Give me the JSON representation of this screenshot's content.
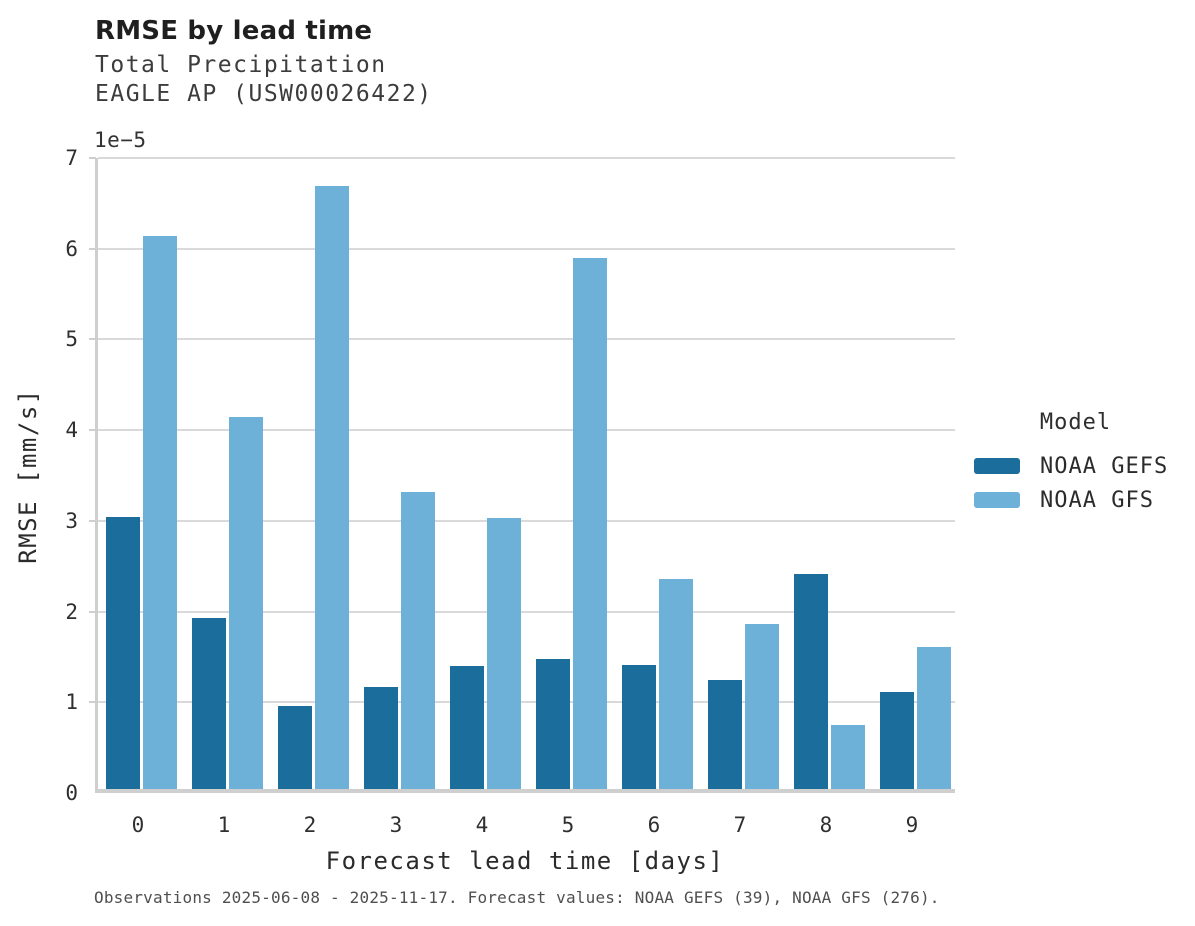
{
  "title": "RMSE by lead time",
  "subtitle1": "Total Precipitation",
  "subtitle2": "EAGLE AP (USW00026422)",
  "footer": "Observations 2025-06-08 - 2025-11-17. Forecast values: NOAA GEFS (39), NOAA GFS (276).",
  "legend": {
    "title": "Model",
    "items": [
      {
        "label": "NOAA GEFS",
        "color": "#1b6d9b"
      },
      {
        "label": "NOAA GFS",
        "color": "#6db1d8"
      }
    ]
  },
  "chart_data": {
    "type": "bar",
    "title": "RMSE by lead time",
    "subtitle": [
      "Total Precipitation",
      "EAGLE AP (USW00026422)"
    ],
    "xlabel": "Forecast lead time [days]",
    "ylabel": "RMSE [mm/s]",
    "offset_label": "1e−5",
    "value_scale": "1e-5",
    "categories": [
      0,
      1,
      2,
      3,
      4,
      5,
      6,
      7,
      8,
      9
    ],
    "series": [
      {
        "name": "NOAA GEFS",
        "color": "#1b6d9b",
        "values": [
          3.02,
          1.9,
          0.92,
          1.13,
          1.37,
          1.44,
          1.38,
          1.21,
          2.38,
          1.08
        ]
      },
      {
        "name": "NOAA GFS",
        "color": "#6db1d8",
        "values": [
          6.14,
          4.13,
          6.69,
          3.29,
          3.01,
          5.89,
          2.33,
          1.83,
          0.71,
          1.58
        ]
      }
    ],
    "ylim": [
      0,
      7
    ],
    "yticks": [
      0,
      1,
      2,
      3,
      4,
      5,
      6,
      7
    ],
    "grid": true,
    "legend_position": "right",
    "caption": "Observations 2025-06-08 - 2025-11-17. Forecast values: NOAA GEFS (39), NOAA GFS (276)."
  }
}
